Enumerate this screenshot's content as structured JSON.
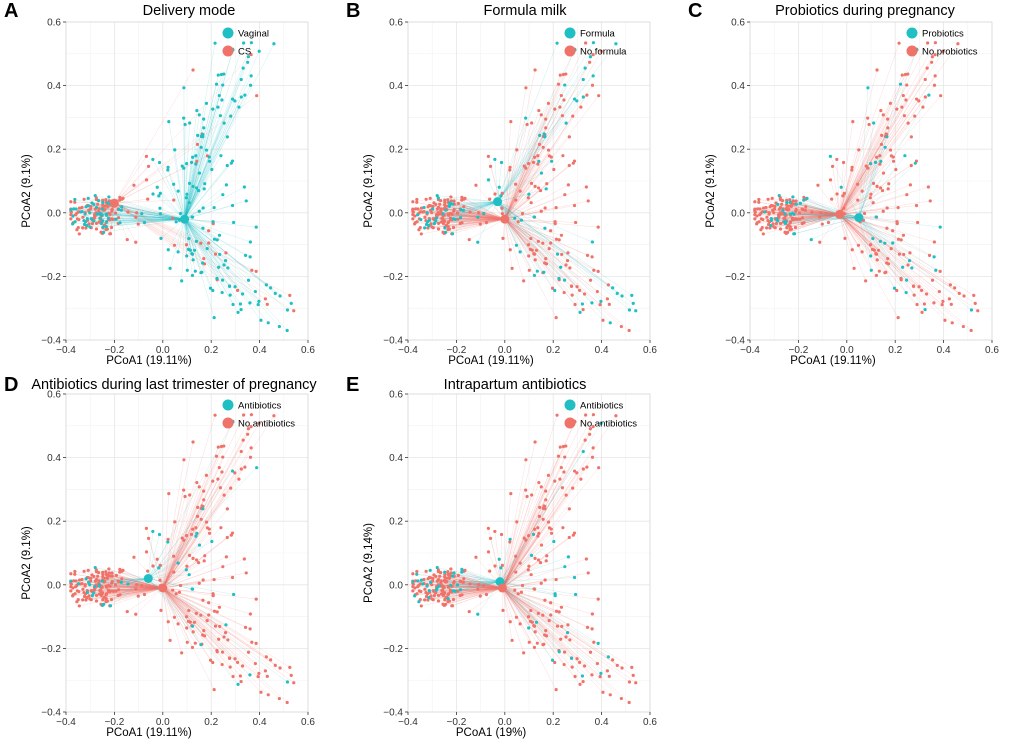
{
  "figure": {
    "colors": {
      "cyan": "#1fbfc4",
      "salmon": "#f0736a"
    },
    "panels": [
      {
        "letter": "A",
        "chart_data": {
          "type": "scatter",
          "title": "Delivery mode",
          "xlabel": "PCoA1 (19.11%)",
          "ylabel": "PCoA2 (9.1%)",
          "xlim": [
            -0.4,
            0.6
          ],
          "ylim": [
            -0.4,
            0.6
          ],
          "xticks": [
            -0.4,
            -0.2,
            0.0,
            0.2,
            0.4,
            0.6
          ],
          "yticks": [
            -0.4,
            -0.2,
            0.0,
            0.2,
            0.4,
            0.6
          ],
          "xtick_labels": [
            "−0.4",
            "−0.2",
            "0.0",
            "0.2",
            "0.4",
            "0.6"
          ],
          "ytick_labels": [
            "−0.4",
            "−0.2",
            "0.0",
            "0.2",
            "0.4",
            "0.6"
          ],
          "legend": [
            {
              "name": "Vaginal",
              "color": "#1fbfc4"
            },
            {
              "name": "CS",
              "color": "#f0736a"
            }
          ],
          "legend_position": "top-right",
          "series": [
            {
              "name": "Vaginal",
              "color": "#1fbfc4",
              "centroid": [
                0.09,
                -0.02
              ]
            },
            {
              "name": "CS",
              "color": "#f0736a",
              "centroid": [
                -0.2,
                0.03
              ]
            }
          ],
          "cloud_share_first": 0.68,
          "seed": 11
        }
      },
      {
        "letter": "B",
        "chart_data": {
          "type": "scatter",
          "title": "Formula milk",
          "xlabel": "PCoA1 (19.11%)",
          "ylabel": "PCoA2 (9.1%)",
          "xlim": [
            -0.4,
            0.6
          ],
          "ylim": [
            -0.4,
            0.6
          ],
          "xticks": [
            -0.4,
            -0.2,
            0.0,
            0.2,
            0.4,
            0.6
          ],
          "yticks": [
            -0.4,
            -0.2,
            0.0,
            0.2,
            0.4,
            0.6
          ],
          "xtick_labels": [
            "−0.4",
            "−0.2",
            "0.0",
            "0.2",
            "0.4",
            "0.6"
          ],
          "ytick_labels": [
            "−0.4",
            "−0.2",
            "0.0",
            "0.2",
            "0.4",
            "0.6"
          ],
          "legend": [
            {
              "name": "Formula",
              "color": "#1fbfc4"
            },
            {
              "name": "No formula",
              "color": "#f0736a"
            }
          ],
          "legend_position": "top-right",
          "series": [
            {
              "name": "Formula",
              "color": "#1fbfc4",
              "centroid": [
                -0.03,
                0.035
              ]
            },
            {
              "name": "No formula",
              "color": "#f0736a",
              "centroid": [
                0.0,
                -0.02
              ]
            }
          ],
          "cloud_share_first": 0.2,
          "seed": 23
        }
      },
      {
        "letter": "C",
        "chart_data": {
          "type": "scatter",
          "title": "Probiotics during pregnancy",
          "xlabel": "PCoA1 (19.11%)",
          "ylabel": "PCoA2 (9.1%)",
          "xlim": [
            -0.4,
            0.6
          ],
          "ylim": [
            -0.4,
            0.6
          ],
          "xticks": [
            -0.4,
            -0.2,
            0.0,
            0.2,
            0.4,
            0.6
          ],
          "yticks": [
            -0.4,
            -0.2,
            0.0,
            0.2,
            0.4,
            0.6
          ],
          "xtick_labels": [
            "−0.4",
            "−0.2",
            "0.0",
            "0.2",
            "0.4",
            "0.6"
          ],
          "ytick_labels": [
            "−0.4",
            "−0.2",
            "0.0",
            "0.2",
            "0.4",
            "0.6"
          ],
          "legend": [
            {
              "name": "Probiotics",
              "color": "#1fbfc4"
            },
            {
              "name": "No probiotics",
              "color": "#f0736a"
            }
          ],
          "legend_position": "top-right",
          "series": [
            {
              "name": "Probiotics",
              "color": "#1fbfc4",
              "centroid": [
                0.05,
                -0.015
              ]
            },
            {
              "name": "No probiotics",
              "color": "#f0736a",
              "centroid": [
                -0.03,
                -0.005
              ]
            }
          ],
          "cloud_share_first": 0.15,
          "seed": 37
        }
      },
      {
        "letter": "D",
        "chart_data": {
          "type": "scatter",
          "title": "Antibiotics during last trimester of pregnancy",
          "xlabel": "PCoA1 (19.11%)",
          "ylabel": "PCoA2 (9.1%)",
          "xlim": [
            -0.4,
            0.6
          ],
          "ylim": [
            -0.4,
            0.6
          ],
          "xticks": [
            -0.4,
            -0.2,
            0.0,
            0.2,
            0.4,
            0.6
          ],
          "yticks": [
            -0.4,
            -0.2,
            0.0,
            0.2,
            0.4,
            0.6
          ],
          "xtick_labels": [
            "−0.4",
            "−0.2",
            "0.0",
            "0.2",
            "0.4",
            "0.6"
          ],
          "ytick_labels": [
            "−0.4",
            "−0.2",
            "0.0",
            "0.2",
            "0.4",
            "0.6"
          ],
          "legend": [
            {
              "name": "Antibiotics",
              "color": "#1fbfc4"
            },
            {
              "name": "No antibiotics",
              "color": "#f0736a"
            }
          ],
          "legend_position": "top-right",
          "series": [
            {
              "name": "Antibiotics",
              "color": "#1fbfc4",
              "centroid": [
                -0.06,
                0.02
              ]
            },
            {
              "name": "No antibiotics",
              "color": "#f0736a",
              "centroid": [
                0.0,
                -0.01
              ]
            }
          ],
          "cloud_share_first": 0.12,
          "seed": 51
        }
      },
      {
        "letter": "E",
        "chart_data": {
          "type": "scatter",
          "title": "Intrapartum antibiotics",
          "xlabel": "PCoA1 (19%)",
          "ylabel": "PCoA2 (9.14%)",
          "xlim": [
            -0.4,
            0.6
          ],
          "ylim": [
            -0.4,
            0.6
          ],
          "xticks": [
            -0.4,
            -0.2,
            0.0,
            0.2,
            0.4,
            0.6
          ],
          "yticks": [
            -0.4,
            -0.2,
            0.0,
            0.2,
            0.4,
            0.6
          ],
          "xtick_labels": [
            "−0.4",
            "−0.2",
            "0.0",
            "0.2",
            "0.4",
            "0.6"
          ],
          "ytick_labels": [
            "−0.4",
            "−0.2",
            "0.0",
            "0.2",
            "0.4",
            "0.6"
          ],
          "legend": [
            {
              "name": "Antibiotics",
              "color": "#1fbfc4"
            },
            {
              "name": "No antibiotics",
              "color": "#f0736a"
            }
          ],
          "legend_position": "top-right",
          "series": [
            {
              "name": "Antibiotics",
              "color": "#1fbfc4",
              "centroid": [
                -0.02,
                0.01
              ]
            },
            {
              "name": "No antibiotics",
              "color": "#f0736a",
              "centroid": [
                -0.01,
                -0.01
              ]
            }
          ],
          "cloud_share_first": 0.14,
          "seed": 67
        }
      }
    ]
  }
}
